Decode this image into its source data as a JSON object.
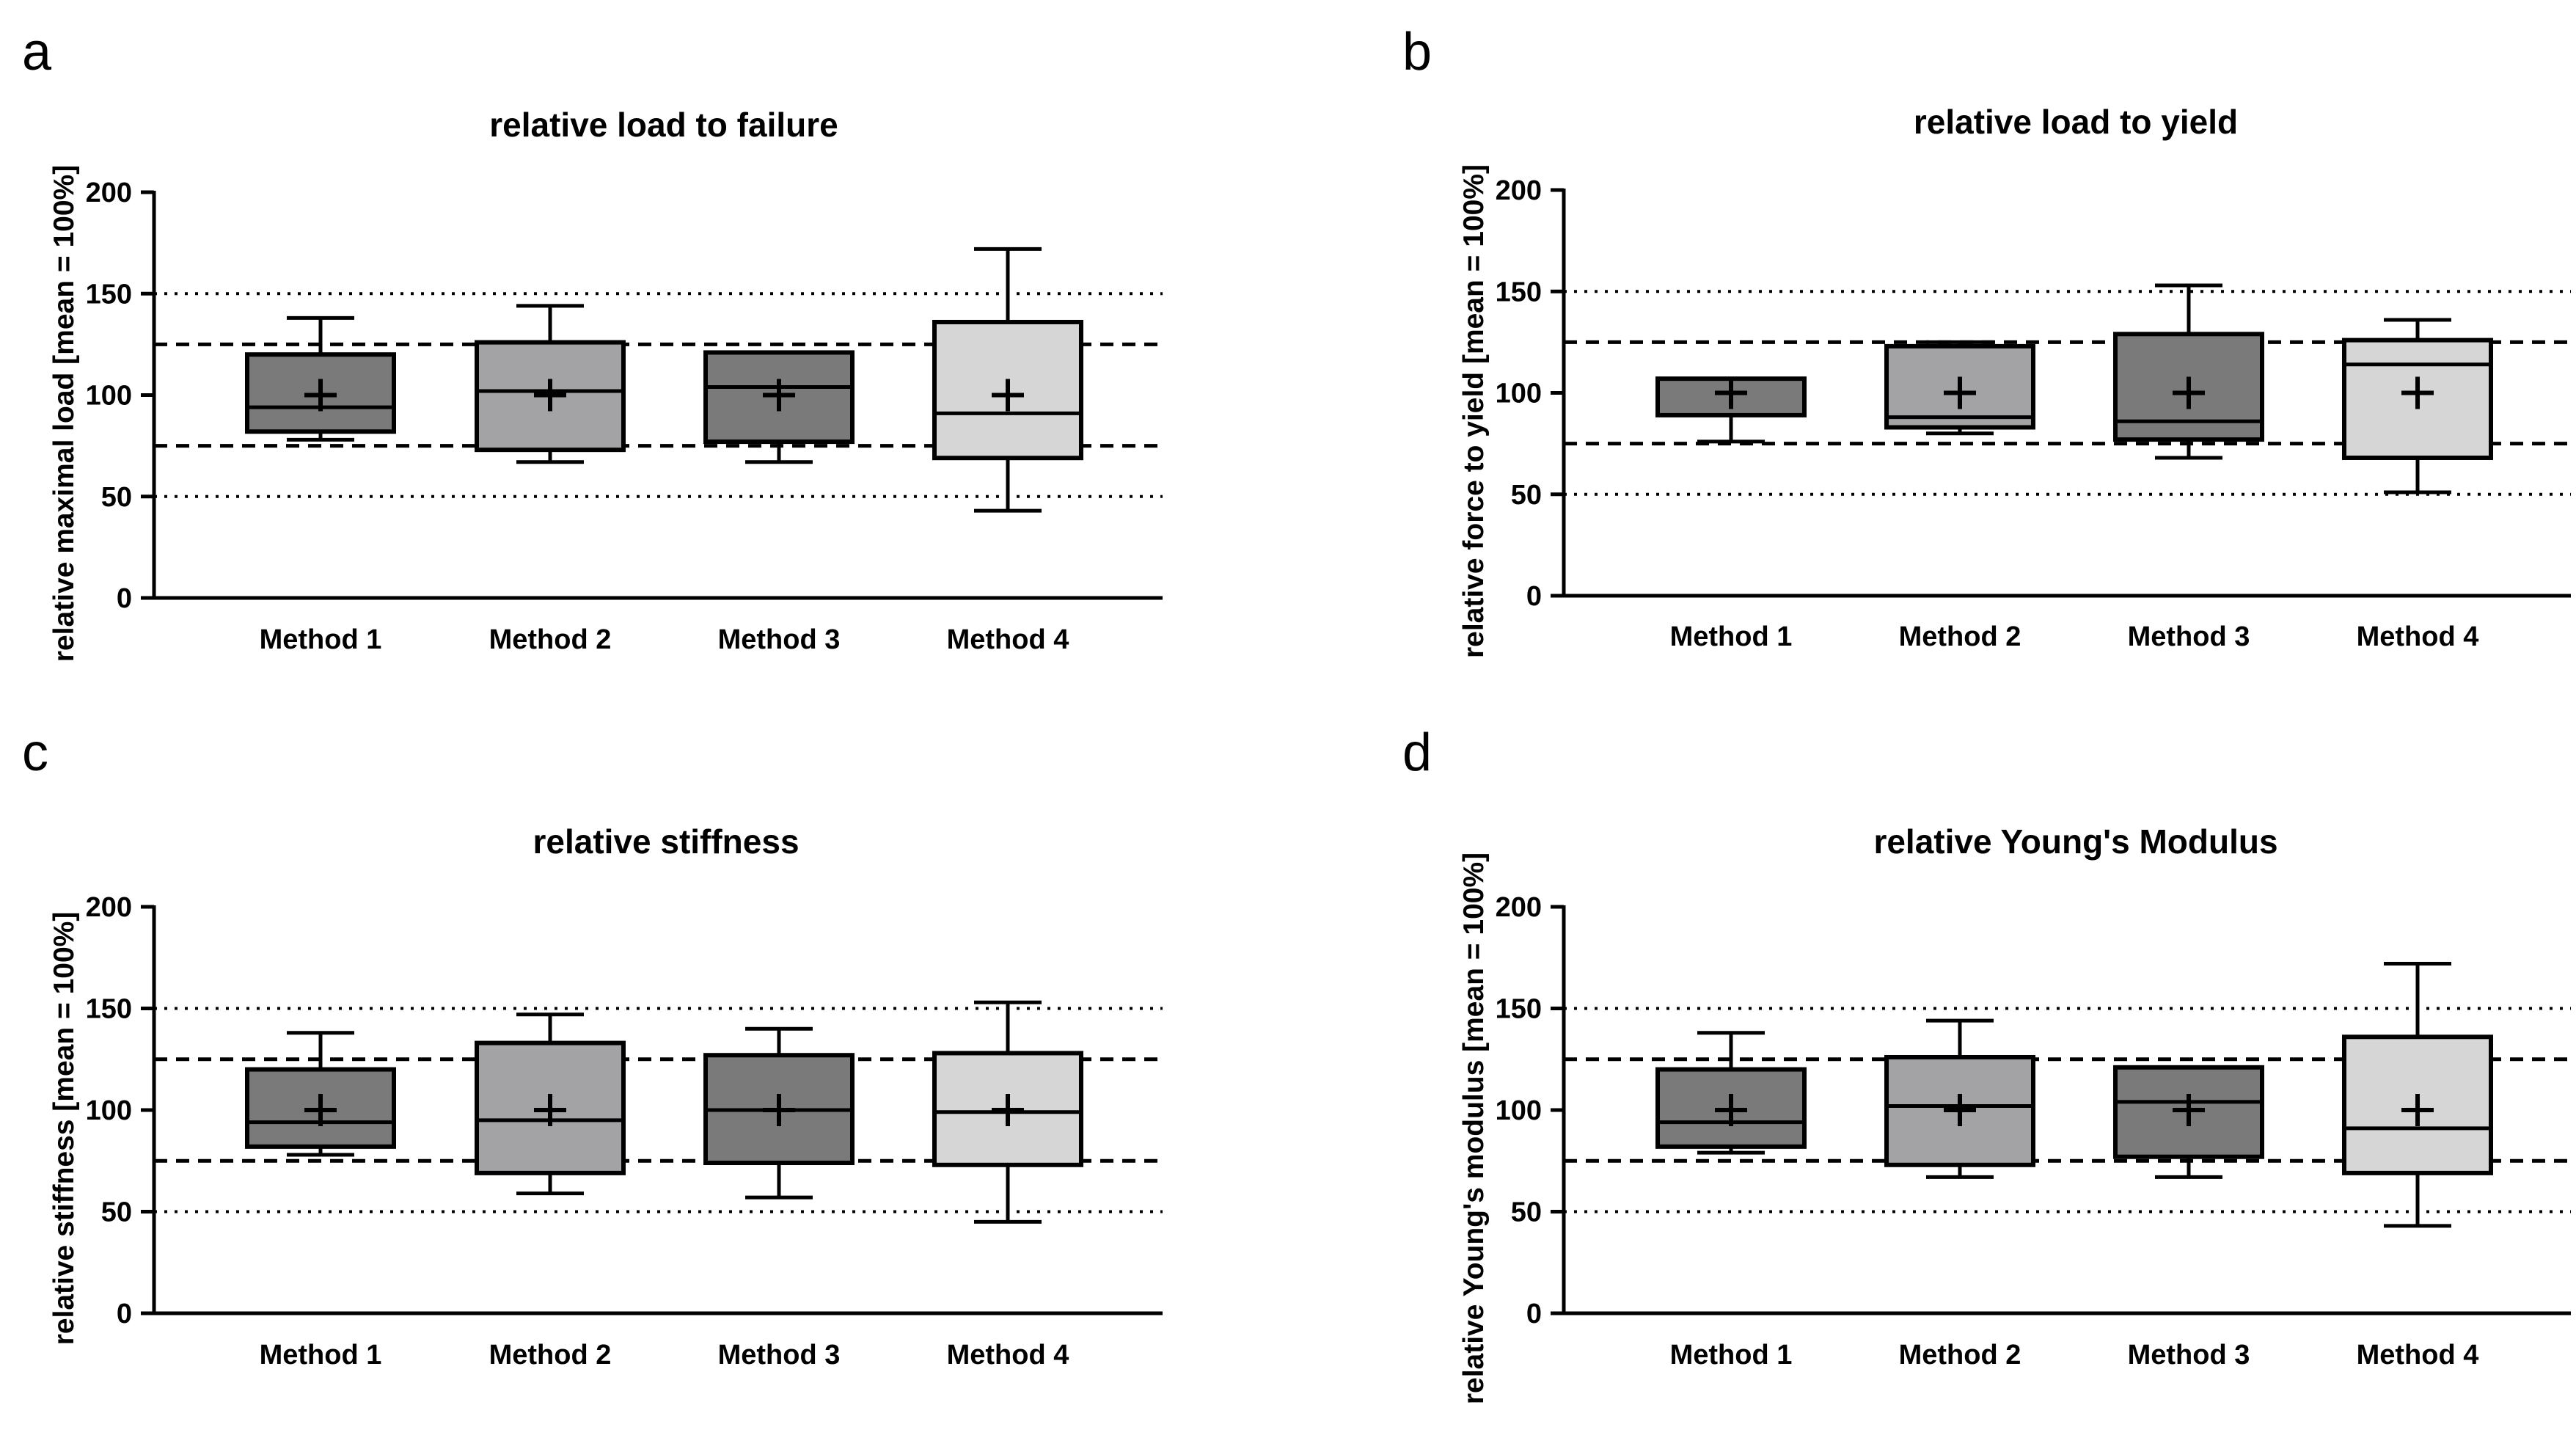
{
  "colors": {
    "Method 1": "#7a7a7a",
    "Method 2": "#a3a3a5",
    "Method 3": "#7a7a7a",
    "Method 4": "#d6d6d6",
    "lines": "#000000"
  },
  "chart_data": [
    {
      "type": "box",
      "panel": "a",
      "title": "relative load to failure",
      "ylabel": "relative maximal load [mean = 100%]",
      "ylim": [
        0,
        200
      ],
      "yticks": [
        "0",
        "50",
        "100",
        "150",
        "200"
      ],
      "reference_lines": {
        "dotted": [
          50,
          150
        ],
        "dashed": [
          75,
          125
        ]
      },
      "categories": [
        "Method 1",
        "Method 2",
        "Method 3",
        "Method 4"
      ],
      "boxes": [
        {
          "min": 78,
          "q1": 82,
          "median": 94,
          "q3": 120,
          "max": 138,
          "mean": 100
        },
        {
          "min": 67,
          "q1": 73,
          "median": 102,
          "q3": 126,
          "max": 144,
          "mean": 100
        },
        {
          "min": 67,
          "q1": 77,
          "median": 104,
          "q3": 121,
          "max": 121,
          "mean": 100
        },
        {
          "min": 43,
          "q1": 69,
          "median": 91,
          "q3": 136,
          "max": 172,
          "mean": 100
        }
      ]
    },
    {
      "type": "box",
      "panel": "b",
      "title": "relative load to yield",
      "ylabel": "relative force to yield [mean = 100%]",
      "ylim": [
        0,
        200
      ],
      "yticks": [
        "0",
        "50",
        "100",
        "150",
        "200"
      ],
      "reference_lines": {
        "dotted": [
          50,
          150
        ],
        "dashed": [
          75,
          125
        ]
      },
      "categories": [
        "Method 1",
        "Method 2",
        "Method 3",
        "Method 4"
      ],
      "boxes": [
        {
          "min": 76,
          "q1": 89,
          "median": 89,
          "q3": 107,
          "max": 107,
          "mean": 100
        },
        {
          "min": 80,
          "q1": 83,
          "median": 88,
          "q3": 123,
          "max": 125,
          "mean": 100
        },
        {
          "min": 68,
          "q1": 77,
          "median": 86,
          "q3": 129,
          "max": 153,
          "mean": 100
        },
        {
          "min": 51,
          "q1": 68,
          "median": 114,
          "q3": 126,
          "max": 136,
          "mean": 100
        }
      ]
    },
    {
      "type": "box",
      "panel": "c",
      "title": "relative stiffness",
      "ylabel": "relative stiffness [mean = 100%]",
      "ylim": [
        0,
        200
      ],
      "yticks": [
        "0",
        "50",
        "100",
        "150",
        "200"
      ],
      "reference_lines": {
        "dotted": [
          50,
          150
        ],
        "dashed": [
          75,
          125
        ]
      },
      "categories": [
        "Method 1",
        "Method 2",
        "Method 3",
        "Method 4"
      ],
      "boxes": [
        {
          "min": 78,
          "q1": 82,
          "median": 94,
          "q3": 120,
          "max": 138,
          "mean": 100
        },
        {
          "min": 59,
          "q1": 69,
          "median": 95,
          "q3": 133,
          "max": 147,
          "mean": 100
        },
        {
          "min": 57,
          "q1": 74,
          "median": 100,
          "q3": 127,
          "max": 140,
          "mean": 100
        },
        {
          "min": 45,
          "q1": 73,
          "median": 99,
          "q3": 128,
          "max": 153,
          "mean": 100
        }
      ]
    },
    {
      "type": "box",
      "panel": "d",
      "title": "relative Young's Modulus",
      "ylabel": "relative Young's modulus [mean = 100%]",
      "ylim": [
        0,
        200
      ],
      "yticks": [
        "0",
        "50",
        "100",
        "150",
        "200"
      ],
      "reference_lines": {
        "dotted": [
          50,
          150
        ],
        "dashed": [
          75,
          125
        ]
      },
      "categories": [
        "Method 1",
        "Method 2",
        "Method 3",
        "Method 4"
      ],
      "boxes": [
        {
          "min": 79,
          "q1": 82,
          "median": 94,
          "q3": 120,
          "max": 138,
          "mean": 100
        },
        {
          "min": 67,
          "q1": 73,
          "median": 102,
          "q3": 126,
          "max": 144,
          "mean": 100
        },
        {
          "min": 67,
          "q1": 77,
          "median": 104,
          "q3": 121,
          "max": 121,
          "mean": 100
        },
        {
          "min": 43,
          "q1": 69,
          "median": 91,
          "q3": 136,
          "max": 172,
          "mean": 100
        }
      ]
    }
  ]
}
